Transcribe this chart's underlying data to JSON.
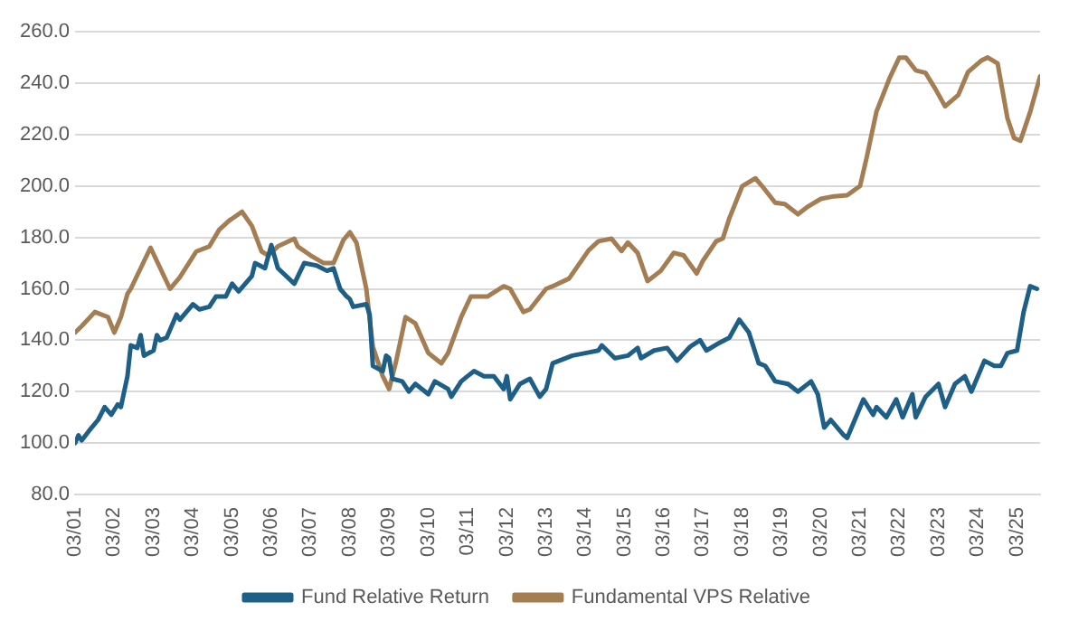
{
  "chart_data": {
    "type": "line",
    "xlim": [
      "2001-03",
      "2025-10"
    ],
    "xticks": [
      {
        "value": "2001-03",
        "label": "03/01"
      },
      {
        "value": "2002-03",
        "label": "03/02"
      },
      {
        "value": "2003-03",
        "label": "03/03"
      },
      {
        "value": "2004-03",
        "label": "03/04"
      },
      {
        "value": "2005-03",
        "label": "03/05"
      },
      {
        "value": "2006-03",
        "label": "03/06"
      },
      {
        "value": "2007-03",
        "label": "03/07"
      },
      {
        "value": "2008-03",
        "label": "03/08"
      },
      {
        "value": "2009-03",
        "label": "03/09"
      },
      {
        "value": "2010-03",
        "label": "03/10"
      },
      {
        "value": "2011-03",
        "label": "03/11"
      },
      {
        "value": "2012-03",
        "label": "03/12"
      },
      {
        "value": "2013-03",
        "label": "03/13"
      },
      {
        "value": "2014-03",
        "label": "03/14"
      },
      {
        "value": "2015-03",
        "label": "03/15"
      },
      {
        "value": "2016-03",
        "label": "03/16"
      },
      {
        "value": "2017-03",
        "label": "03/17"
      },
      {
        "value": "2018-03",
        "label": "03/18"
      },
      {
        "value": "2019-03",
        "label": "03/19"
      },
      {
        "value": "2020-03",
        "label": "03/20"
      },
      {
        "value": "2021-03",
        "label": "03/21"
      },
      {
        "value": "2022-03",
        "label": "03/22"
      },
      {
        "value": "2023-03",
        "label": "03/23"
      },
      {
        "value": "2024-03",
        "label": "03/24"
      },
      {
        "value": "2025-03",
        "label": "03/25"
      }
    ],
    "ylim": [
      80,
      260
    ],
    "yticks": [
      {
        "value": 80,
        "label": "80.0"
      },
      {
        "value": 100,
        "label": "100.0"
      },
      {
        "value": 120,
        "label": "120.0"
      },
      {
        "value": 140,
        "label": "140.0"
      },
      {
        "value": 160,
        "label": "160.0"
      },
      {
        "value": 180,
        "label": "180.0"
      },
      {
        "value": 200,
        "label": "200.0"
      },
      {
        "value": 220,
        "label": "220.0"
      },
      {
        "value": 240,
        "label": "240.0"
      },
      {
        "value": 260,
        "label": "260.0"
      }
    ],
    "grid": "y",
    "legend": "bottom",
    "marker": "none",
    "line_style": "solid",
    "series": [
      {
        "name": "Fund Relative Return",
        "color": "#1d5f87",
        "x": [
          "2001-03",
          "2001-04",
          "2001-05",
          "2001-08",
          "2001-10",
          "2001-12",
          "2002-02",
          "2002-04",
          "2002-05",
          "2002-07",
          "2002-08",
          "2002-10",
          "2002-11",
          "2002-12",
          "2003-03",
          "2003-04",
          "2003-05",
          "2003-07",
          "2003-10",
          "2003-11",
          "2004-03",
          "2004-05",
          "2004-08",
          "2004-10",
          "2005-01",
          "2005-03",
          "2005-05",
          "2005-09",
          "2005-10",
          "2006-01",
          "2006-03",
          "2006-05",
          "2006-10",
          "2007-01",
          "2007-05",
          "2007-08",
          "2007-10",
          "2007-12",
          "2008-02",
          "2008-03",
          "2008-04",
          "2008-08",
          "2008-09",
          "2008-10",
          "2009-01",
          "2009-02",
          "2009-03",
          "2009-04",
          "2009-07",
          "2009-09",
          "2009-11",
          "2010-03",
          "2010-05",
          "2010-09",
          "2010-10",
          "2011-01",
          "2011-03",
          "2011-05",
          "2011-08",
          "2011-11",
          "2012-02",
          "2012-03",
          "2012-04",
          "2012-07",
          "2012-10",
          "2013-01",
          "2013-03",
          "2013-05",
          "2013-11",
          "2014-03",
          "2014-07",
          "2014-08",
          "2014-12",
          "2015-04",
          "2015-07",
          "2015-08",
          "2015-12",
          "2016-04",
          "2016-07",
          "2016-11",
          "2017-02",
          "2017-04",
          "2017-08",
          "2017-11",
          "2018-02",
          "2018-05",
          "2018-08",
          "2018-10",
          "2019-01",
          "2019-05",
          "2019-08",
          "2019-12",
          "2020-02",
          "2020-04",
          "2020-06",
          "2020-10",
          "2020-11",
          "2021-01",
          "2021-04",
          "2021-07",
          "2021-08",
          "2021-11",
          "2022-02",
          "2022-04",
          "2022-07",
          "2022-08",
          "2022-11",
          "2023-03",
          "2023-05",
          "2023-08",
          "2023-11",
          "2024-01",
          "2024-05",
          "2024-08",
          "2024-10",
          "2024-12",
          "2025-03",
          "2025-05",
          "2025-07",
          "2025-09"
        ],
        "values": [
          100,
          103,
          101,
          106,
          109,
          114,
          111,
          115,
          114,
          126,
          138,
          137,
          142,
          134,
          136,
          142,
          140,
          141,
          150,
          148,
          154,
          152,
          153,
          157,
          157,
          162,
          159,
          165,
          170,
          168,
          177,
          168,
          162,
          170,
          169,
          167,
          168,
          160,
          157,
          156,
          153,
          154,
          150,
          130,
          128,
          134,
          133,
          125,
          124,
          120,
          123,
          119,
          124,
          121,
          118,
          124,
          126,
          128,
          126,
          126,
          121,
          126,
          117,
          123,
          125,
          118,
          121,
          131,
          134,
          135,
          136,
          138,
          133,
          134,
          137,
          133,
          136,
          137,
          132,
          137.5,
          140,
          136,
          139,
          141,
          148,
          143,
          131,
          130,
          124,
          123,
          120,
          124,
          119,
          106,
          109,
          103,
          102,
          108,
          117,
          111,
          114,
          110,
          117,
          110,
          119,
          110,
          118,
          123,
          114,
          123,
          126,
          120,
          132,
          130,
          130,
          135,
          136,
          151,
          161,
          160
        ]
      },
      {
        "name": "Fundamental VPS Relative",
        "color": "#a47d52",
        "x": [
          "2001-03",
          "2001-05",
          "2001-09",
          "2002-01",
          "2002-03",
          "2002-05",
          "2002-07",
          "2002-08",
          "2003-02",
          "2003-08",
          "2003-11",
          "2004-04",
          "2004-08",
          "2004-11",
          "2005-02",
          "2005-06",
          "2005-09",
          "2005-12",
          "2006-02",
          "2006-05",
          "2006-10",
          "2006-11",
          "2007-03",
          "2007-07",
          "2007-10",
          "2008-01",
          "2008-03",
          "2008-05",
          "2008-08",
          "2008-10",
          "2009-01",
          "2009-03",
          "2009-05",
          "2009-08",
          "2009-11",
          "2010-03",
          "2010-07",
          "2010-09",
          "2011-01",
          "2011-04",
          "2011-09",
          "2012-02",
          "2012-04",
          "2012-08",
          "2012-10",
          "2013-03",
          "2013-05",
          "2013-10",
          "2014-04",
          "2014-07",
          "2014-11",
          "2015-02",
          "2015-04",
          "2015-07",
          "2015-10",
          "2016-02",
          "2016-06",
          "2016-09",
          "2017-01",
          "2017-03",
          "2017-07",
          "2017-09",
          "2017-11",
          "2018-03",
          "2018-07",
          "2018-09",
          "2019-01",
          "2019-04",
          "2019-08",
          "2019-11",
          "2020-03",
          "2020-07",
          "2020-11",
          "2021-03",
          "2021-05",
          "2021-08",
          "2021-12",
          "2022-03",
          "2022-05",
          "2022-08",
          "2022-11",
          "2023-02",
          "2023-05",
          "2023-09",
          "2023-12",
          "2024-04",
          "2024-06",
          "2024-09",
          "2024-12",
          "2025-02",
          "2025-04",
          "2025-07",
          "2025-10"
        ],
        "values": [
          143,
          145.5,
          151,
          149,
          143,
          149,
          158,
          160,
          176,
          160,
          164.5,
          174.5,
          176.5,
          183,
          186.5,
          190,
          184.5,
          174.5,
          173,
          176.5,
          179.5,
          176.5,
          173,
          170,
          170,
          179,
          182,
          178,
          160,
          137.5,
          126,
          121,
          131,
          149,
          146.5,
          135,
          131,
          135,
          149,
          157,
          157,
          161,
          160,
          151,
          152,
          160,
          161,
          164,
          175,
          178.5,
          179.5,
          174.7,
          178,
          174,
          163,
          167,
          174,
          173,
          166,
          171,
          178.5,
          179.6,
          187.5,
          200,
          203,
          200,
          193.5,
          193,
          189,
          192,
          195,
          196,
          196.4,
          200,
          211,
          229,
          242,
          250,
          250,
          245,
          244,
          237.7,
          231,
          235.4,
          244.4,
          248.8,
          250,
          247.7,
          226.5,
          218.7,
          217.6,
          228.8,
          242.6
        ]
      }
    ]
  }
}
